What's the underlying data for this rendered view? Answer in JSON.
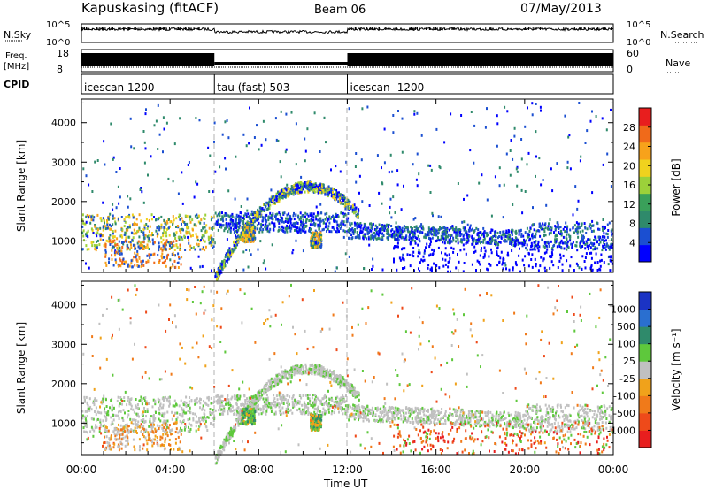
{
  "header": {
    "station": "Kapuskasing (fitACF)",
    "beam": "Beam 06",
    "date": "07/May/2013"
  },
  "strips": {
    "nsky": {
      "left_label": "N.Sky",
      "right_label": "N.Search",
      "left_ticks": [
        "10^5",
        "10^0"
      ],
      "right_ticks": [
        "10^5",
        "10^0"
      ]
    },
    "freq": {
      "left_label_line1": "Freq.",
      "left_label_line2": "[MHz]",
      "right_label": "Nave",
      "left_ticks": [
        "18",
        "8"
      ],
      "right_ticks": [
        "60",
        "0"
      ]
    },
    "cpid": {
      "left_label": "CPID",
      "segments": [
        {
          "label": "icescan 1200",
          "start_h": 0,
          "end_h": 6
        },
        {
          "label": "tau (fast) 503",
          "start_h": 6,
          "end_h": 12
        },
        {
          "label": "icescan -1200",
          "start_h": 12,
          "end_h": 24
        }
      ]
    }
  },
  "panels": {
    "power": {
      "ylabel": "Slant Range [km]",
      "colorbar_label": "Power [dB]",
      "colorbar_ticks": [
        "28",
        "24",
        "20",
        "16",
        "12",
        "8",
        "4"
      ],
      "colors": [
        "#0000ff",
        "#1b4fd1",
        "#2f8a6b",
        "#3aa05a",
        "#9cd13a",
        "#f0d21e",
        "#f7a21b",
        "#f06a1a",
        "#e81e1e"
      ]
    },
    "velocity": {
      "ylabel": "Slant Range [km]",
      "colorbar_label": "Velocity [m s⁻¹]",
      "colorbar_ticks": [
        "1000",
        "500",
        "100",
        "25",
        "-25",
        "-100",
        "-500",
        "-1000"
      ],
      "colors": [
        "#1b33c4",
        "#2a6fd0",
        "#2f8a6b",
        "#5ec83c",
        "#c0c0c0",
        "#f0a21b",
        "#f07a1a",
        "#ee4a1a",
        "#e81e1e"
      ]
    }
  },
  "chart_data": [
    {
      "type": "heatmap",
      "title": "Kapuskasing (fitACF) Beam 06 07/May/2013",
      "xlabel": "Time UT",
      "ylabel": "Slant Range [km]",
      "colorbar_label": "Power [dB]",
      "x_ticks": [
        "00:00",
        "04:00",
        "08:00",
        "12:00",
        "16:00",
        "20:00",
        "00:00"
      ],
      "x_range_h": [
        0,
        24
      ],
      "y_ticks": [
        1000,
        2000,
        3000,
        4000
      ],
      "y_range_km": [
        200,
        4600
      ],
      "color_scale": [
        4,
        8,
        12,
        16,
        20,
        24,
        28
      ],
      "dashed_vlines_h": [
        6,
        12
      ],
      "scatter_regions": [
        {
          "name": "ground scatter band",
          "start_h": 0,
          "end_h": 24,
          "range_km": [
            900,
            1700
          ],
          "power_dB": 12
        },
        {
          "name": "arc",
          "start_h": 6,
          "end_h": 12,
          "peak_h": 10.2,
          "peak_range_km": 2400,
          "power_dB": 10
        },
        {
          "name": "patch",
          "start_h": 7.2,
          "end_h": 7.8,
          "range_km": [
            1000,
            1400
          ],
          "power_dB": 10
        },
        {
          "name": "patch",
          "start_h": 10.3,
          "end_h": 10.8,
          "range_km": [
            850,
            1200
          ],
          "power_dB": 18
        }
      ]
    },
    {
      "type": "heatmap",
      "title": "",
      "xlabel": "Time UT",
      "ylabel": "Slant Range [km]",
      "colorbar_label": "Velocity [m s⁻¹]",
      "x_ticks": [
        "00:00",
        "04:00",
        "08:00",
        "12:00",
        "16:00",
        "20:00",
        "00:00"
      ],
      "x_range_h": [
        0,
        24
      ],
      "y_ticks": [
        1000,
        2000,
        3000,
        4000
      ],
      "y_range_km": [
        200,
        4600
      ],
      "color_scale": [
        1000,
        500,
        100,
        25,
        -25,
        -100,
        -500,
        -1000
      ],
      "dashed_vlines_h": [
        6,
        12
      ],
      "scatter_regions": [
        {
          "name": "ground scatter band",
          "start_h": 0,
          "end_h": 24,
          "range_km": [
            900,
            1700
          ],
          "velocity_ms": 0
        },
        {
          "name": "arc",
          "start_h": 6,
          "end_h": 12,
          "peak_h": 10.2,
          "peak_range_km": 2400,
          "velocity_ms": 0
        },
        {
          "name": "patch",
          "start_h": 7.2,
          "end_h": 7.8,
          "range_km": [
            1000,
            1400
          ],
          "velocity_ms": 100
        },
        {
          "name": "patch",
          "start_h": 10.3,
          "end_h": 10.8,
          "range_km": [
            850,
            1200
          ],
          "velocity_ms": 200
        },
        {
          "name": "early echoes",
          "start_h": 1,
          "end_h": 4.5,
          "range_km": [
            500,
            1000
          ],
          "velocity_ms": -150
        }
      ]
    }
  ]
}
